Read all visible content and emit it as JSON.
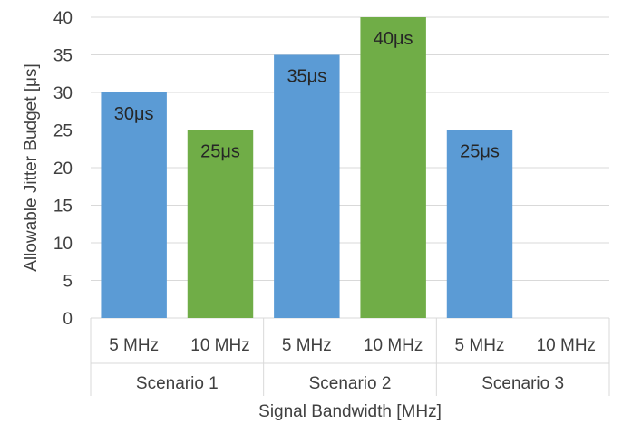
{
  "chart_data": {
    "type": "bar",
    "xlabel": "Signal Bandwidth [MHz]",
    "ylabel": "Allowable Jitter Budget [μs]",
    "ylim": [
      0,
      40
    ],
    "yticks": [
      0,
      5,
      10,
      15,
      20,
      25,
      30,
      35,
      40
    ],
    "grid": true,
    "legend": "none",
    "groups": [
      "Scenario 1",
      "Scenario 2",
      "Scenario 3"
    ],
    "categories": [
      "5 MHz",
      "10 MHz",
      "5 MHz",
      "10 MHz",
      "5 MHz",
      "10 MHz"
    ],
    "values": [
      30,
      25,
      35,
      40,
      25,
      null
    ],
    "data_labels": [
      "30μs",
      "25μs",
      "35μs",
      "40μs",
      "25μs",
      ""
    ],
    "colors": {
      "5 MHz": "#5b9bd5",
      "10 MHz": "#70ad47"
    }
  }
}
